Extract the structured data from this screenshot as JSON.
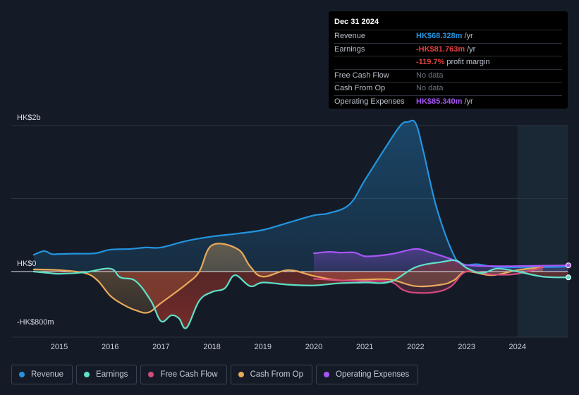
{
  "tooltip": {
    "date": "Dec 31 2024",
    "rows": [
      {
        "label": "Revenue",
        "value": "HK$68.328m",
        "unit": "/yr",
        "color": "#2394df"
      },
      {
        "label": "Earnings",
        "value": "-HK$81.763m",
        "unit": "/yr",
        "color": "#e64141"
      },
      {
        "label": "",
        "value": "-119.7%",
        "unit": "profit margin",
        "color": "#e64141"
      },
      {
        "label": "Free Cash Flow",
        "value": "No data",
        "unit": "",
        "color": "#6b7280"
      },
      {
        "label": "Cash From Op",
        "value": "No data",
        "unit": "",
        "color": "#6b7280"
      },
      {
        "label": "Operating Expenses",
        "value": "HK$85.340m",
        "unit": "/yr",
        "color": "#a855f7"
      }
    ]
  },
  "legend": [
    {
      "label": "Revenue",
      "color": "#2394df"
    },
    {
      "label": "Earnings",
      "color": "#5fe0c8"
    },
    {
      "label": "Free Cash Flow",
      "color": "#d44a7d"
    },
    {
      "label": "Cash From Op",
      "color": "#e8a95a"
    },
    {
      "label": "Operating Expenses",
      "color": "#a855f7"
    }
  ],
  "chart_data": {
    "type": "line",
    "title": "",
    "currency": "HK$",
    "units": "HK$m",
    "ylim": [
      -800,
      2000
    ],
    "y_tick_labels": [
      "HK$2b",
      "HK$0",
      "-HK$800m"
    ],
    "x_tick_labels": [
      "2015",
      "2016",
      "2017",
      "2018",
      "2019",
      "2020",
      "2021",
      "2022",
      "2023",
      "2024"
    ],
    "xlim": [
      2014.5,
      2025.0
    ],
    "forecast_region_start": 2024.0,
    "series": [
      {
        "name": "Revenue",
        "color": "#2394df",
        "x": [
          2014.5,
          2014.7,
          2014.85,
          2015.0,
          2015.3,
          2015.7,
          2016.0,
          2016.4,
          2016.7,
          2017.0,
          2017.5,
          2018.0,
          2018.5,
          2019.0,
          2019.5,
          2020.0,
          2020.3,
          2020.7,
          2021.0,
          2021.4,
          2021.7,
          2021.85,
          2022.0,
          2022.15,
          2022.4,
          2022.7,
          2022.9,
          2023.2,
          2023.6,
          2024.0,
          2024.5,
          2025.0
        ],
        "y": [
          230,
          280,
          240,
          240,
          245,
          250,
          300,
          310,
          330,
          330,
          420,
          480,
          520,
          570,
          670,
          770,
          800,
          920,
          1250,
          1690,
          2000,
          2050,
          2030,
          1650,
          900,
          300,
          100,
          100,
          60,
          60,
          60,
          68
        ]
      },
      {
        "name": "Earnings",
        "color": "#5fe0c8",
        "x": [
          2014.5,
          2014.8,
          2015.0,
          2015.5,
          2016.0,
          2016.2,
          2016.5,
          2016.8,
          2017.0,
          2017.2,
          2017.35,
          2017.5,
          2017.75,
          2018.0,
          2018.25,
          2018.45,
          2018.75,
          2019.0,
          2019.5,
          2020.0,
          2020.5,
          2021.0,
          2021.5,
          2022.0,
          2022.5,
          2022.8,
          2023.0,
          2023.3,
          2023.6,
          2024.0,
          2024.5,
          2025.0
        ],
        "y": [
          0,
          -20,
          -30,
          -10,
          40,
          -80,
          -130,
          -400,
          -680,
          -600,
          -640,
          -770,
          -400,
          -280,
          -230,
          -50,
          -200,
          -150,
          -180,
          -190,
          -160,
          -150,
          -140,
          60,
          130,
          150,
          50,
          -20,
          40,
          0,
          -70,
          -80
        ]
      },
      {
        "name": "Free Cash Flow",
        "color": "#d44a7d",
        "x": [
          2020.0,
          2020.5,
          2021.0,
          2021.5,
          2021.75,
          2022.0,
          2022.4,
          2022.7,
          2023.0,
          2023.5,
          2024.0,
          2024.5
        ],
        "y": [
          -100,
          -120,
          -130,
          -140,
          -250,
          -290,
          -280,
          -200,
          0,
          -40,
          -30,
          60
        ]
      },
      {
        "name": "Cash From Op",
        "color": "#e8a95a",
        "x": [
          2014.5,
          2015.0,
          2015.5,
          2015.75,
          2016.0,
          2016.25,
          2016.5,
          2016.75,
          2017.0,
          2017.5,
          2017.75,
          2018.0,
          2018.5,
          2018.75,
          2019.0,
          2019.5,
          2020.0,
          2020.5,
          2021.0,
          2021.5,
          2022.0,
          2022.5,
          2022.75,
          2023.0,
          2023.5,
          2024.0,
          2024.5
        ],
        "y": [
          30,
          20,
          -20,
          -120,
          -330,
          -450,
          -530,
          -560,
          -430,
          -170,
          0,
          360,
          310,
          70,
          -70,
          20,
          -60,
          -120,
          -110,
          -110,
          -200,
          -180,
          -120,
          0,
          -50,
          20,
          60
        ]
      },
      {
        "name": "Operating Expenses",
        "color": "#a855f7",
        "x": [
          2020.0,
          2020.3,
          2020.5,
          2020.8,
          2021.0,
          2021.3,
          2021.6,
          2022.0,
          2022.3,
          2022.7,
          2023.0,
          2023.5,
          2024.0,
          2024.5,
          2025.0
        ],
        "y": [
          250,
          270,
          260,
          260,
          210,
          220,
          250,
          310,
          260,
          170,
          90,
          75,
          75,
          80,
          85
        ]
      }
    ]
  }
}
